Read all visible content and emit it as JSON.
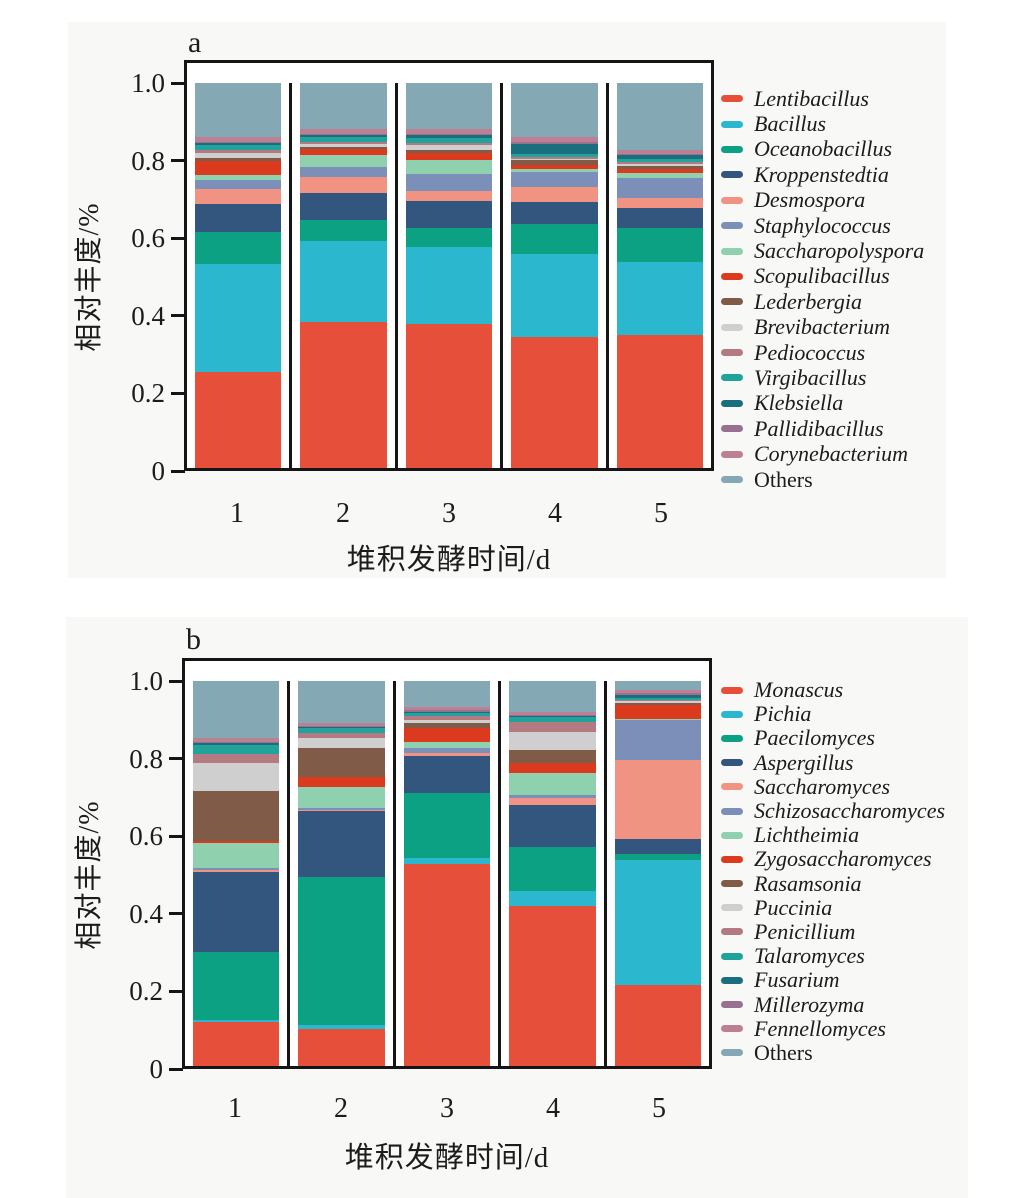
{
  "chart_data": [
    {
      "id": "a",
      "type": "bar",
      "stacked": true,
      "panel_label": "a",
      "ylabel": "相对丰度/%",
      "xlabel": "堆积发酵时间/d",
      "ylim": [
        0,
        1.0
      ],
      "ytick_labels": [
        "1.0",
        "0.8",
        "0.6",
        "0.4",
        "0.2",
        "0"
      ],
      "grid": false,
      "legend_position": "right",
      "categories": [
        "1",
        "2",
        "3",
        "4",
        "5"
      ],
      "series": [
        {
          "name": "Lentibacillus",
          "color": "#E6503A",
          "italic": true,
          "values": [
            0.25,
            0.38,
            0.375,
            0.34,
            0.345
          ]
        },
        {
          "name": "Bacillus",
          "color": "#2BB7CE",
          "italic": true,
          "values": [
            0.28,
            0.21,
            0.2,
            0.215,
            0.19
          ]
        },
        {
          "name": "Oceanobacillus",
          "color": "#0DA183",
          "italic": true,
          "values": [
            0.084,
            0.055,
            0.048,
            0.08,
            0.088
          ]
        },
        {
          "name": "Kroppenstedtia",
          "color": "#33567E",
          "italic": true,
          "values": [
            0.073,
            0.07,
            0.07,
            0.057,
            0.052
          ]
        },
        {
          "name": "Desmospora",
          "color": "#F09382",
          "italic": true,
          "values": [
            0.039,
            0.04,
            0.026,
            0.039,
            0.026
          ]
        },
        {
          "name": "Staphylococcus",
          "color": "#7B8FB8",
          "italic": true,
          "values": [
            0.021,
            0.026,
            0.046,
            0.039,
            0.052
          ]
        },
        {
          "name": "Saccharopolyspora",
          "color": "#8FD0AE",
          "italic": true,
          "values": [
            0.013,
            0.031,
            0.034,
            0.008,
            0.013
          ]
        },
        {
          "name": "Scopulibacillus",
          "color": "#DB3A1E",
          "italic": true,
          "values": [
            0.037,
            0.018,
            0.02,
            0.008,
            0.01
          ]
        },
        {
          "name": "Lederbergia",
          "color": "#7F5B48",
          "italic": true,
          "values": [
            0.008,
            0.005,
            0.007,
            0.013,
            0.008
          ]
        },
        {
          "name": "Brevibacterium",
          "color": "#CFCFCF",
          "italic": true,
          "values": [
            0.013,
            0.008,
            0.012,
            0.005,
            0.005
          ]
        },
        {
          "name": "Pediococcus",
          "color": "#B37A82",
          "italic": true,
          "values": [
            0.008,
            0.005,
            0.007,
            0.005,
            0.005
          ]
        },
        {
          "name": "Virgibacillus",
          "color": "#1FA39B",
          "italic": true,
          "values": [
            0.013,
            0.013,
            0.012,
            0.008,
            0.01
          ]
        },
        {
          "name": "Klebsiella",
          "color": "#1A6E7E",
          "italic": true,
          "values": [
            0.005,
            0.005,
            0.007,
            0.026,
            0.008
          ]
        },
        {
          "name": "Pallidibacillus",
          "color": "#97718F",
          "italic": true,
          "values": [
            0.003,
            0.003,
            0.004,
            0.003,
            0.003
          ]
        },
        {
          "name": "Corynebacterium",
          "color": "#BD8092",
          "italic": true,
          "values": [
            0.013,
            0.013,
            0.012,
            0.013,
            0.012
          ]
        },
        {
          "name": "Others",
          "color": "#84A9B5",
          "italic": false,
          "values": [
            0.14,
            0.118,
            0.12,
            0.141,
            0.173
          ]
        }
      ]
    },
    {
      "id": "b",
      "type": "bar",
      "stacked": true,
      "panel_label": "b",
      "ylabel": "相对丰度/%",
      "xlabel": "堆积发酵时间/d",
      "ylim": [
        0,
        1.0
      ],
      "ytick_labels": [
        "1.0",
        "0.8",
        "0.6",
        "0.4",
        "0.2",
        "0"
      ],
      "grid": false,
      "legend_position": "right",
      "categories": [
        "1",
        "2",
        "3",
        "4",
        "5"
      ],
      "series": [
        {
          "name": "Monascus",
          "color": "#E6503A",
          "italic": true,
          "values": [
            0.115,
            0.095,
            0.525,
            0.415,
            0.21
          ]
        },
        {
          "name": "Pichia",
          "color": "#2BB7CE",
          "italic": true,
          "values": [
            0.005,
            0.012,
            0.015,
            0.039,
            0.325
          ]
        },
        {
          "name": "Paecilomyces",
          "color": "#0DA183",
          "italic": true,
          "values": [
            0.175,
            0.385,
            0.17,
            0.115,
            0.015
          ]
        },
        {
          "name": "Aspergillus",
          "color": "#33567E",
          "italic": true,
          "values": [
            0.21,
            0.17,
            0.095,
            0.108,
            0.04
          ]
        },
        {
          "name": "Saccharomyces",
          "color": "#F09382",
          "italic": true,
          "values": [
            0.005,
            0.004,
            0.008,
            0.018,
            0.205
          ]
        },
        {
          "name": "Schizosaccharomyces",
          "color": "#7B8FB8",
          "italic": true,
          "values": [
            0.005,
            0.004,
            0.012,
            0.01,
            0.103
          ]
        },
        {
          "name": "Lichtheimia",
          "color": "#8FD0AE",
          "italic": true,
          "values": [
            0.065,
            0.055,
            0.018,
            0.055,
            0.004
          ]
        },
        {
          "name": "Zygosaccharomyces",
          "color": "#DB3A1E",
          "italic": true,
          "values": [
            0.005,
            0.026,
            0.036,
            0.026,
            0.035
          ]
        },
        {
          "name": "Rasamsonia",
          "color": "#7F5B48",
          "italic": true,
          "values": [
            0.13,
            0.075,
            0.012,
            0.036,
            0.006
          ]
        },
        {
          "name": "Puccinia",
          "color": "#CFCFCF",
          "italic": true,
          "values": [
            0.073,
            0.025,
            0.008,
            0.046,
            0.004
          ]
        },
        {
          "name": "Penicillium",
          "color": "#B37A82",
          "italic": true,
          "values": [
            0.023,
            0.014,
            0.01,
            0.026,
            0.004
          ]
        },
        {
          "name": "Talaromyces",
          "color": "#1FA39B",
          "italic": true,
          "values": [
            0.022,
            0.012,
            0.008,
            0.012,
            0.006
          ]
        },
        {
          "name": "Fusarium",
          "color": "#1A6E7E",
          "italic": true,
          "values": [
            0.005,
            0.004,
            0.004,
            0.004,
            0.008
          ]
        },
        {
          "name": "Millerozyma",
          "color": "#97718F",
          "italic": true,
          "values": [
            0.003,
            0.003,
            0.003,
            0.003,
            0.003
          ]
        },
        {
          "name": "Fennellomyces",
          "color": "#BD8092",
          "italic": true,
          "values": [
            0.012,
            0.008,
            0.008,
            0.008,
            0.01
          ]
        },
        {
          "name": "Others",
          "color": "#84A9B5",
          "italic": false,
          "values": [
            0.147,
            0.108,
            0.068,
            0.079,
            0.022
          ]
        }
      ]
    }
  ],
  "colors": {
    "axis": "#151515",
    "panel_background": "#f8f8f6",
    "page_background": "#ffffff"
  }
}
